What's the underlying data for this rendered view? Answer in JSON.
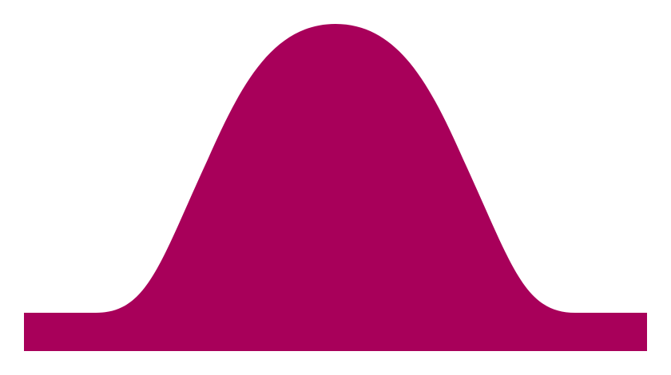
{
  "colors": {
    "background": "#ffffff",
    "shape_fill": "#a8005a"
  },
  "figure": {
    "shape": "bell-curve"
  }
}
